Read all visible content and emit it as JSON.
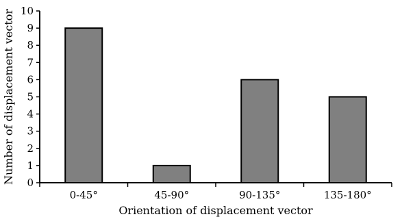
{
  "chart_data": {
    "type": "bar",
    "categories": [
      "0-45°",
      "45-90°",
      "90-135°",
      "135-180°"
    ],
    "values": [
      9,
      1,
      6,
      5
    ],
    "xlabel": "Orientation of displacement vector",
    "ylabel": "Number of displacement vector",
    "ylim": [
      0,
      10
    ],
    "yticks": [
      "0",
      "1",
      "2",
      "3",
      "4",
      "5",
      "6",
      "7",
      "8",
      "9",
      "10"
    ],
    "grid": false,
    "legend": "none",
    "colors": {
      "bar_fill": "#808080",
      "bar_stroke": "#000000",
      "axis": "#000000"
    }
  }
}
